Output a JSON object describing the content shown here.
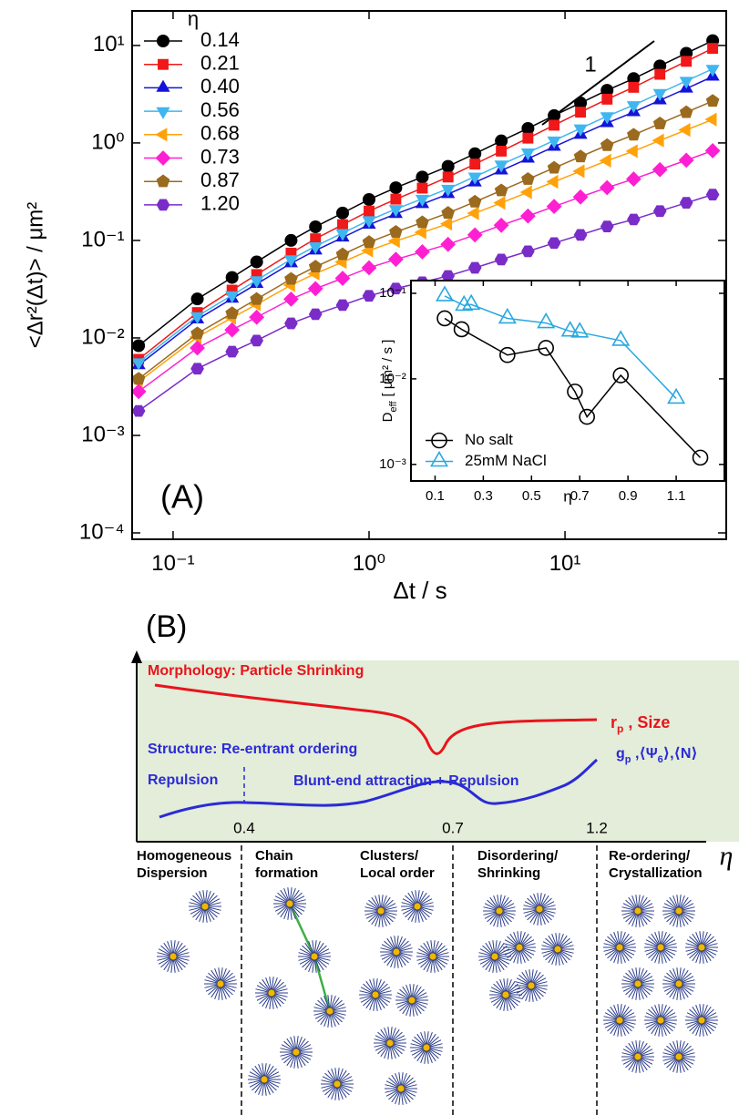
{
  "panel_a_label": "(A)",
  "chart_data": [
    {
      "type": "line",
      "xlabel": "Δt / s",
      "ylabel": "<Δr²(Δt)> / μm²",
      "xscale": "log",
      "yscale": "log",
      "xlim": [
        0.0618,
        66.5
      ],
      "ylim": [
        8.6e-05,
        22.6
      ],
      "xticks": [
        {
          "value": 0.1,
          "label": "10⁻¹"
        },
        {
          "value": 1,
          "label": "10⁰"
        },
        {
          "value": 10,
          "label": "10¹"
        }
      ],
      "yticks": [
        {
          "value": 0.0001,
          "label": "10⁻⁴"
        },
        {
          "value": 0.001,
          "label": "10⁻³"
        },
        {
          "value": 0.01,
          "label": "10⁻²"
        },
        {
          "value": 0.1,
          "label": "10⁻¹"
        },
        {
          "value": 1,
          "label": "10⁰"
        },
        {
          "value": 10,
          "label": "10¹"
        }
      ],
      "legend_title": "η",
      "legend": "upper left",
      "annotation": "1",
      "x": [
        0.0667,
        0.133,
        0.2,
        0.267,
        0.4,
        0.533,
        0.733,
        1,
        1.37,
        1.87,
        2.53,
        3.47,
        4.73,
        6.47,
        8.8,
        12,
        16.4,
        22.4,
        30.5,
        41.6,
        56.7
      ],
      "series": [
        {
          "name": "0.14",
          "color": "#000000",
          "marker": "circle",
          "values": [
            0.00832,
            0.0251,
            0.0417,
            0.0603,
            0.1,
            0.138,
            0.191,
            0.263,
            0.347,
            0.447,
            0.575,
            0.776,
            1.05,
            1.41,
            1.91,
            2.57,
            3.47,
            4.57,
            6.17,
            8.32,
            11.2
          ]
        },
        {
          "name": "0.21",
          "color": "#f01818",
          "marker": "square",
          "values": [
            0.00603,
            0.0182,
            0.0309,
            0.0447,
            0.0741,
            0.104,
            0.145,
            0.2,
            0.265,
            0.344,
            0.447,
            0.607,
            0.824,
            1.12,
            1.52,
            2.07,
            2.81,
            3.72,
            5.06,
            6.87,
            9.33
          ]
        },
        {
          "name": "0.40",
          "color": "#1414d8",
          "marker": "triangle-up",
          "values": [
            0.00525,
            0.0155,
            0.0253,
            0.0358,
            0.0583,
            0.0789,
            0.107,
            0.145,
            0.187,
            0.236,
            0.299,
            0.394,
            0.522,
            0.69,
            0.914,
            1.21,
            1.6,
            2.07,
            2.74,
            3.61,
            4.79
          ]
        },
        {
          "name": "0.56",
          "color": "#3fb6f0",
          "marker": "triangle-down",
          "values": [
            0.00562,
            0.0167,
            0.0274,
            0.0391,
            0.064,
            0.0871,
            0.119,
            0.161,
            0.21,
            0.267,
            0.339,
            0.451,
            0.6,
            0.798,
            1.06,
            1.41,
            1.88,
            2.44,
            3.25,
            4.33,
            5.75
          ]
        },
        {
          "name": "0.68",
          "color": "#ffa20a",
          "marker": "triangle-left",
          "values": [
            0.00355,
            0.0102,
            0.0161,
            0.0221,
            0.0348,
            0.0457,
            0.06,
            0.0787,
            0.0986,
            0.121,
            0.148,
            0.19,
            0.243,
            0.312,
            0.4,
            0.513,
            0.658,
            0.824,
            1.06,
            1.36,
            1.74
          ]
        },
        {
          "name": "0.73",
          "color": "#ff1fd2",
          "marker": "diamond",
          "values": [
            0.00282,
            0.00789,
            0.0121,
            0.0163,
            0.025,
            0.032,
            0.0409,
            0.0524,
            0.064,
            0.0764,
            0.0912,
            0.114,
            0.143,
            0.178,
            0.223,
            0.279,
            0.348,
            0.426,
            0.532,
            0.665,
            0.832
          ]
        },
        {
          "name": "0.87",
          "color": "#9a6a1e",
          "marker": "pentagon",
          "values": [
            0.0038,
            0.0111,
            0.0179,
            0.025,
            0.0402,
            0.0537,
            0.0718,
            0.0959,
            0.122,
            0.153,
            0.191,
            0.249,
            0.325,
            0.425,
            0.555,
            0.724,
            0.946,
            1.21,
            1.58,
            2.06,
            2.69
          ]
        },
        {
          "name": "1.20",
          "color": "#7a2cc8",
          "marker": "hexagon",
          "values": [
            0.00178,
            0.00483,
            0.00723,
            0.0094,
            0.0141,
            0.0175,
            0.0217,
            0.027,
            0.0321,
            0.0372,
            0.0432,
            0.0524,
            0.0637,
            0.0773,
            0.094,
            0.114,
            0.139,
            0.164,
            0.2,
            0.243,
            0.295
          ]
        }
      ]
    },
    {
      "type": "line",
      "xlabel": "η",
      "ylabel": [
        "D",
        "eff",
        "[ μm² / s ]"
      ],
      "xscale": "linear",
      "yscale": "log",
      "xlim": [
        0,
        1.3
      ],
      "ylim": [
        0.00064,
        0.141
      ],
      "xticks": [
        0.1,
        0.3,
        0.5,
        0.7,
        0.9,
        1.1
      ],
      "yticks": [
        {
          "value": 0.001,
          "label": "10⁻³"
        },
        {
          "value": 0.01,
          "label": "10⁻²"
        },
        {
          "value": 0.1,
          "label": "10⁻¹"
        }
      ],
      "legend": "lower left",
      "marker_fill": "none",
      "series": [
        {
          "name": "No salt",
          "color": "#000000",
          "marker": "circle",
          "x": [
            0.14,
            0.21,
            0.4,
            0.56,
            0.68,
            0.73,
            0.87,
            1.2
          ],
          "values": [
            0.051,
            0.038,
            0.019,
            0.023,
            0.0071,
            0.0036,
            0.011,
            0.0012
          ]
        },
        {
          "name": "25mM NaCl",
          "color": "#29a8e0",
          "marker": "triangle-up",
          "x": [
            0.14,
            0.22,
            0.25,
            0.4,
            0.56,
            0.66,
            0.7,
            0.87,
            1.1
          ],
          "values": [
            0.093,
            0.072,
            0.074,
            0.051,
            0.045,
            0.036,
            0.035,
            0.028,
            0.0059
          ]
        }
      ]
    }
  ],
  "panel_b": {
    "label": "(B)",
    "morphology": "Morphology: Particle Shrinking",
    "size_label": [
      "r",
      "p",
      " , Size"
    ],
    "structure": "Structure: Re-entrant ordering",
    "order_label": [
      "g",
      "p",
      " ,⟨Ψ",
      "6",
      "⟩,⟨N⟩"
    ],
    "repulsion": "Repulsion",
    "attraction": "Blunt-end attraction + Repulsion",
    "ticks": [
      "0.4",
      "0.7",
      "1.2"
    ],
    "axis_label": "η",
    "regions": [
      [
        "Homogeneous",
        "Dispersion"
      ],
      [
        "Chain",
        "formation"
      ],
      [
        "Clusters/",
        "Local order"
      ],
      [
        "Disordering/",
        "Shrinking"
      ],
      [
        "Re-ordering/",
        "Crystallization"
      ]
    ]
  }
}
